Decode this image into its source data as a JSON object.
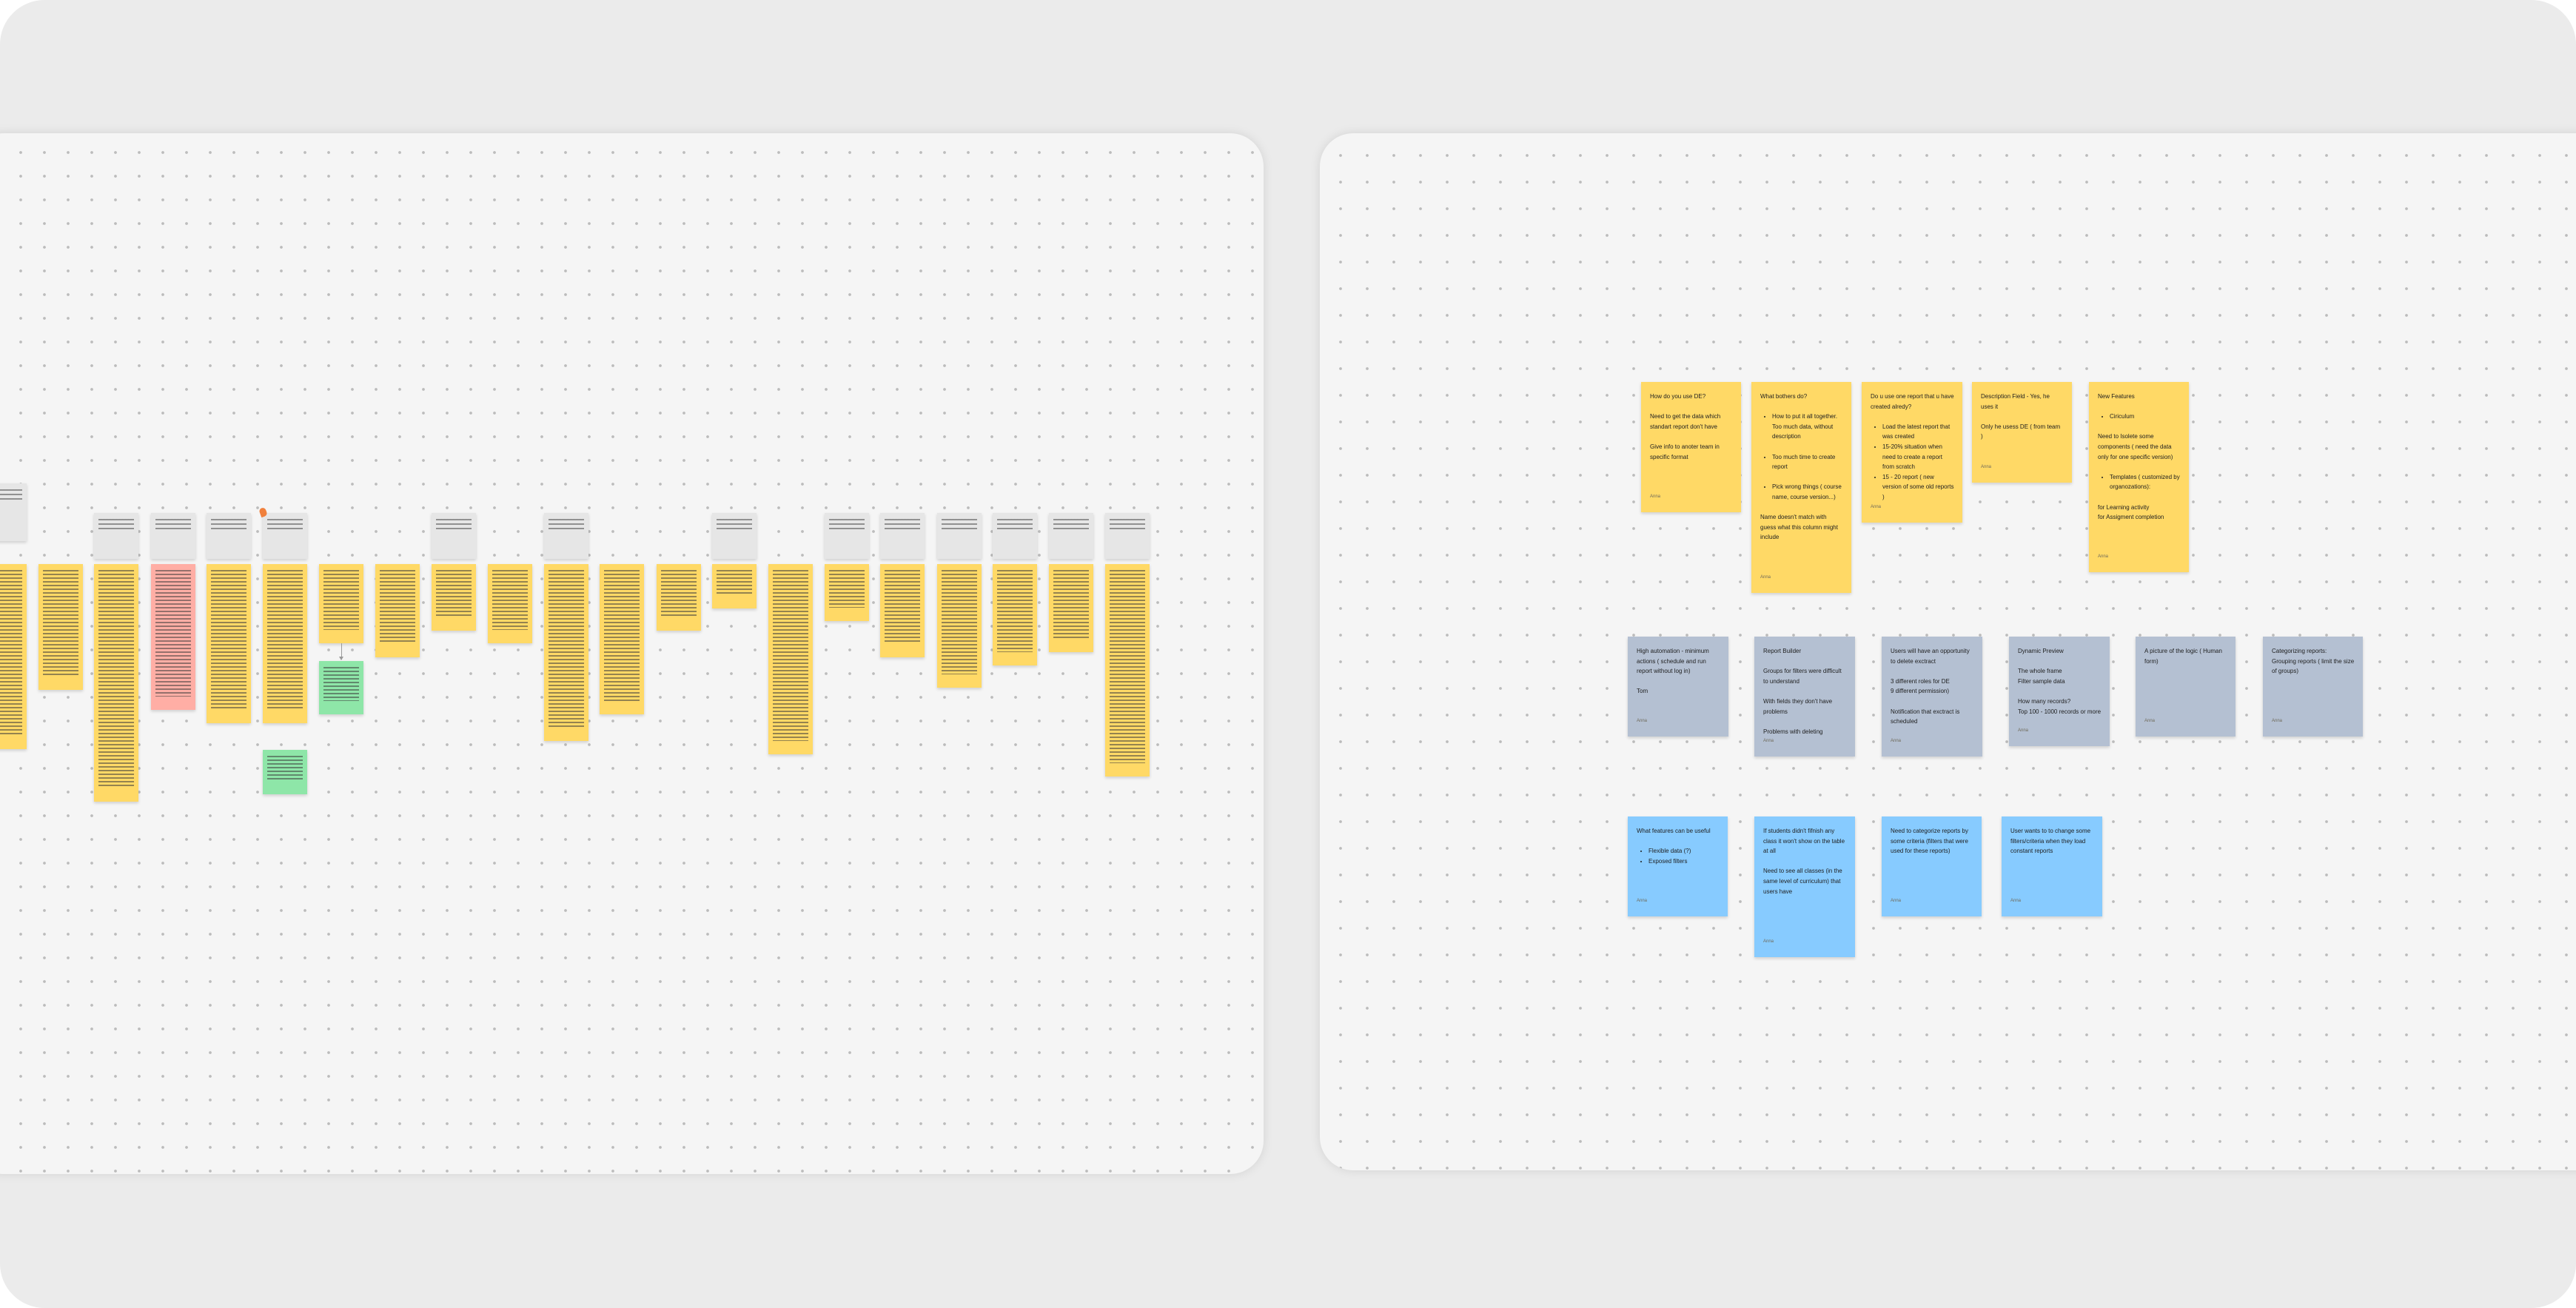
{
  "colors": {
    "yellow": "#FFD966",
    "slate": "#B4C0D2",
    "blue": "#87CBFF",
    "pink": "#FFAEA5",
    "green": "#8EE6A8",
    "gray": "#E6E6E6",
    "marker": "#F0803C"
  },
  "board_left": {
    "columns": [
      {
        "header": true,
        "color": "yellow"
      },
      {
        "header": false,
        "color": "yellow"
      },
      {
        "header": true,
        "color": "yellow"
      },
      {
        "header": true,
        "color": "pink"
      },
      {
        "header": true,
        "color": "yellow"
      },
      {
        "header": true,
        "color": "yellow",
        "attached": "green",
        "marker": true
      },
      {
        "header": false,
        "color": "yellow",
        "attached": "green",
        "connector": true
      },
      {
        "header": false,
        "color": "yellow"
      },
      {
        "header": true,
        "color": "yellow"
      },
      {
        "header": false,
        "color": "yellow"
      },
      {
        "header": true,
        "color": "yellow"
      },
      {
        "header": false,
        "color": "yellow"
      },
      {
        "header": false,
        "color": "yellow"
      },
      {
        "header": true,
        "color": "yellow"
      },
      {
        "header": false,
        "color": "yellow"
      },
      {
        "header": true,
        "color": "yellow"
      },
      {
        "header": true,
        "color": "yellow"
      },
      {
        "header": true,
        "color": "yellow"
      },
      {
        "header": true,
        "color": "yellow"
      },
      {
        "header": true,
        "color": "yellow"
      },
      {
        "header": true,
        "color": "yellow"
      }
    ]
  },
  "board_right": {
    "notes": [
      {
        "color": "yellow",
        "author": "Anna",
        "blocks": [
          {
            "type": "p",
            "text": "How do you use DE?"
          },
          {
            "type": "p",
            "text": "Need to get the data which standart report don't have"
          },
          {
            "type": "p",
            "text": "Give info to anoter team in specific format"
          }
        ]
      },
      {
        "color": "yellow",
        "author": "Anna",
        "blocks": [
          {
            "type": "p",
            "text": "What bothers do?"
          },
          {
            "type": "ul",
            "items": [
              "How to put it all together. Too much data, without description"
            ]
          },
          {
            "type": "ul",
            "items": [
              "Too much time to create report"
            ]
          },
          {
            "type": "ul",
            "items": [
              "Pick wrong things ( course name, course version...)"
            ]
          },
          {
            "type": "p",
            "text": "Name doesn't match with guess what this column might include"
          }
        ]
      },
      {
        "color": "yellow",
        "author": "Anna",
        "blocks": [
          {
            "type": "p",
            "text": "Do u use one report that u have created alredy?"
          },
          {
            "type": "ul",
            "items": [
              "Load the latest report that was created",
              "15-20% situation when need to create a report from scratch",
              "15 - 20 report ( new version of some old reports )"
            ]
          }
        ]
      },
      {
        "color": "yellow",
        "author": "Anna",
        "blocks": [
          {
            "type": "p",
            "text": "Description Field - Yes, he uses it"
          },
          {
            "type": "p",
            "text": "Only he usess DE ( from team )"
          }
        ]
      },
      {
        "color": "yellow",
        "author": "Anna",
        "blocks": [
          {
            "type": "p",
            "text": "New Features"
          },
          {
            "type": "ul",
            "items": [
              "Ciriculum"
            ]
          },
          {
            "type": "p",
            "text": "Need to  Isolete some components ( need the data only for one specific version)"
          },
          {
            "type": "ul",
            "items": [
              "Templates ( customized by organozations):"
            ]
          },
          {
            "type": "p",
            "text": " for Learning activity\n for Assigment completion"
          }
        ]
      },
      {
        "color": "slate",
        "author": "Anna",
        "blocks": [
          {
            "type": "p",
            "text": "High automation - minimum actions ( schedule and run report without log in)"
          },
          {
            "type": "p",
            "text": "Tom"
          }
        ]
      },
      {
        "color": "slate",
        "author": "Anna",
        "blocks": [
          {
            "type": "p",
            "text": "Report Builder"
          },
          {
            "type": "p",
            "text": "Groups for filters were difficult to understand"
          },
          {
            "type": "p",
            "text": "With fields they don't have problems"
          },
          {
            "type": "p",
            "text": "Problems with deleting"
          }
        ]
      },
      {
        "color": "slate",
        "author": "Anna",
        "blocks": [
          {
            "type": "p",
            "text": "Users will have an opportunity to delete exctract"
          },
          {
            "type": "p",
            "text": "3 different roles for DE\n9 different permission)"
          },
          {
            "type": "p",
            "text": "Notification that exctract is scheduled"
          }
        ]
      },
      {
        "color": "slate",
        "author": "Anna",
        "blocks": [
          {
            "type": "p",
            "text": "Dynamic Preview"
          },
          {
            "type": "p",
            "text": "The whole frame\nFilter sample data"
          },
          {
            "type": "p",
            "text": "How many records?\nTop 100 - 1000 records or more"
          }
        ]
      },
      {
        "color": "slate",
        "author": "Anna",
        "blocks": [
          {
            "type": "p",
            "text": "A picture of the logic ( Human form)"
          }
        ]
      },
      {
        "color": "slate",
        "author": "Anna",
        "blocks": [
          {
            "type": "p",
            "text": "Categorizing reports:\nGrouping reports ( limit the size of groups)"
          }
        ]
      },
      {
        "color": "blue",
        "author": "Anna",
        "blocks": [
          {
            "type": "p",
            "text": "What features can be useful"
          },
          {
            "type": "ul",
            "items": [
              "Flexible data (?)",
              "Exposed filters"
            ]
          }
        ]
      },
      {
        "color": "blue",
        "author": "Anna",
        "blocks": [
          {
            "type": "p",
            "text": "If students didn't fifnish any class it won't show on the table at all"
          },
          {
            "type": "p",
            "text": "Need to see all classes (in the same level of curriculum) that users have"
          }
        ]
      },
      {
        "color": "blue",
        "author": "Anna",
        "blocks": [
          {
            "type": "p",
            "text": "Need to categorize reports by some criteria (filters that were used for these reports)"
          }
        ]
      },
      {
        "color": "blue",
        "author": "Anna",
        "blocks": [
          {
            "type": "p",
            "text": "User wants to to change some filters/criteria when they load constant reports"
          }
        ]
      }
    ]
  }
}
